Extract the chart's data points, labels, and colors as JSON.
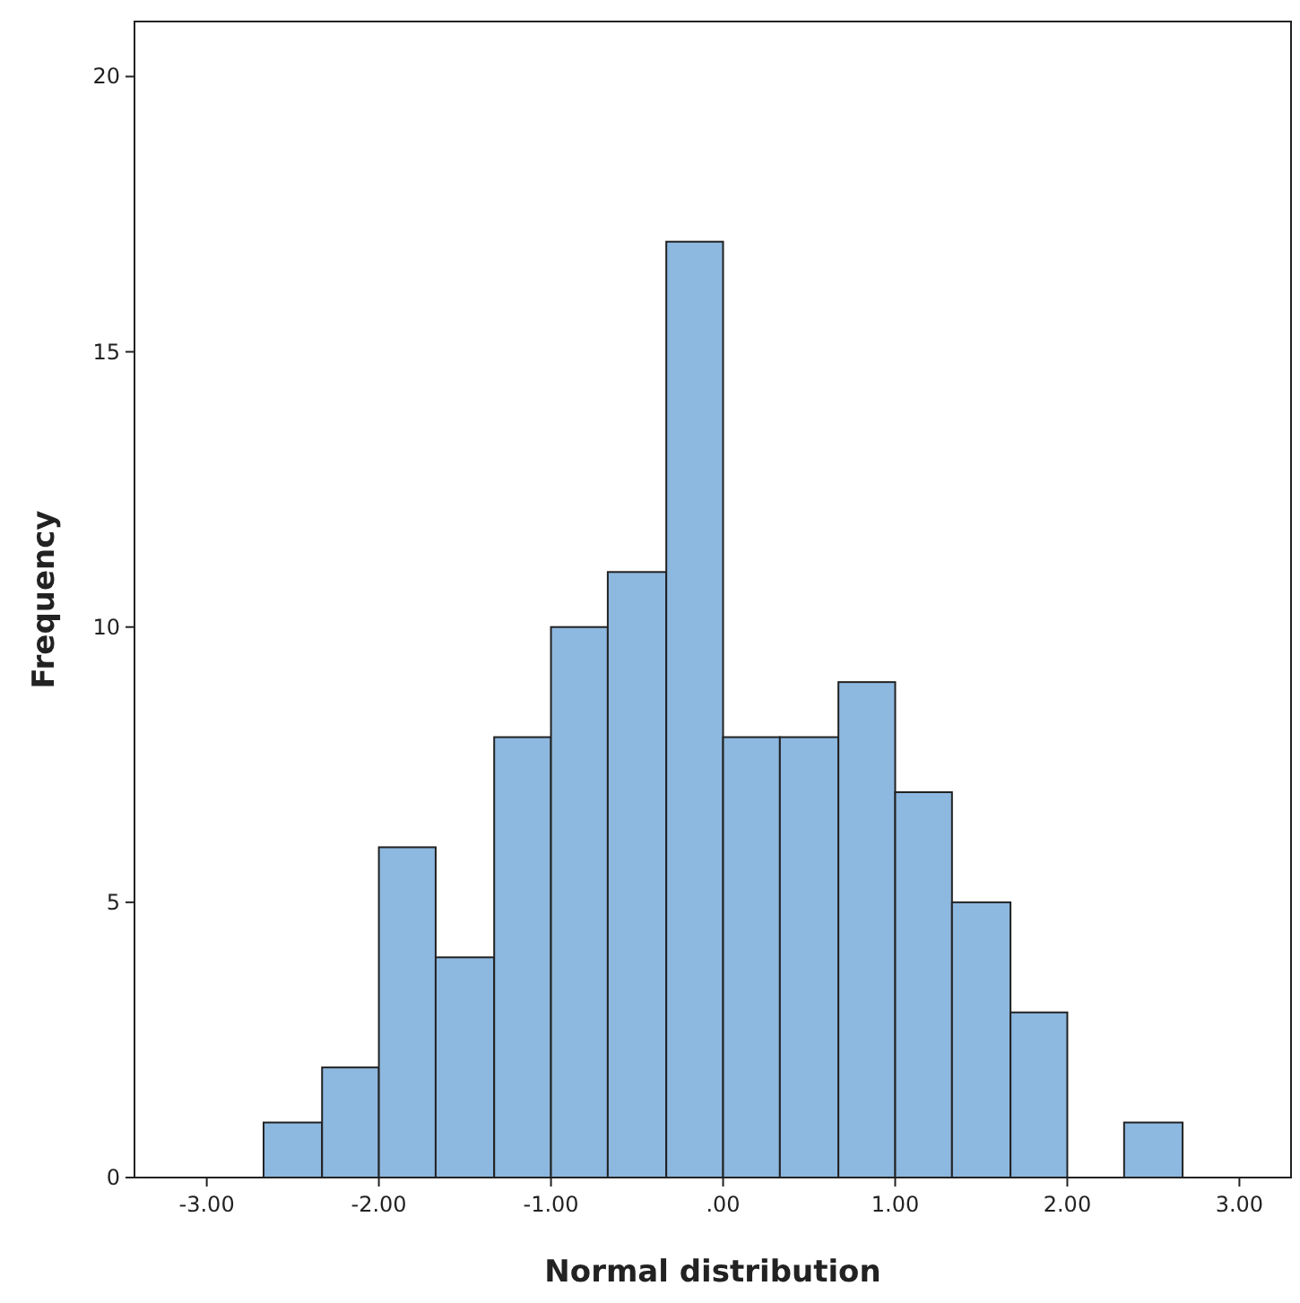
{
  "chart_data": {
    "type": "histogram",
    "xlabel": "Normal distribution",
    "ylabel": "Frequency",
    "bins": [
      -2.67,
      -2.33,
      -2.0,
      -1.67,
      -1.33,
      -1.0,
      -0.67,
      -0.33,
      0.0,
      0.33,
      0.67,
      1.0,
      1.33,
      1.67,
      2.0,
      2.33,
      2.67
    ],
    "values": [
      1,
      2,
      6,
      4,
      8,
      10,
      11,
      17,
      8,
      8,
      9,
      7,
      5,
      3,
      0,
      1
    ],
    "color": "#8db8e0",
    "xlim": [
      -3.42,
      3.3
    ],
    "xticks": [
      {
        "value": -3,
        "label": "-3.00"
      },
      {
        "value": -2,
        "label": "-2.00"
      },
      {
        "value": -1,
        "label": "-1.00"
      },
      {
        "value": 0,
        "label": ".00"
      },
      {
        "value": 1,
        "label": "1.00"
      },
      {
        "value": 2,
        "label": "2.00"
      },
      {
        "value": 3,
        "label": "3.00"
      }
    ],
    "ylim": [
      0,
      21
    ],
    "yticks": [
      0,
      5,
      10,
      15,
      20
    ],
    "grid": false
  }
}
